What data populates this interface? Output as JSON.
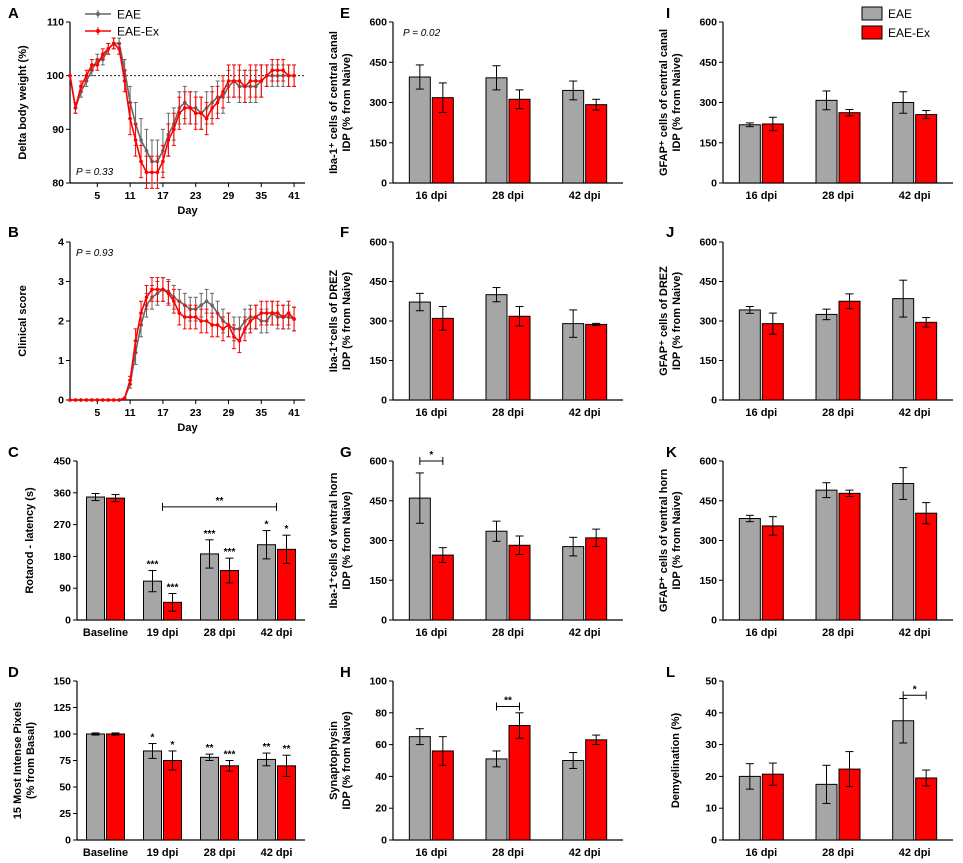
{
  "colors": {
    "eae_line": "#666666",
    "eae_bar": "#a6a6a6",
    "eaeex": "#ff0000",
    "axis": "#000000"
  },
  "legend_line": [
    "EAE",
    "EAE-Ex"
  ],
  "legend_bar": [
    "EAE",
    "EAE-Ex"
  ],
  "chart_data": [
    {
      "id": "A",
      "letter": "A",
      "type": "line",
      "ylabel": "Delta body weight (%)",
      "xlabel": "Day",
      "pval": "P = 0.33",
      "xlim": [
        0,
        43
      ],
      "ylim": [
        80,
        110
      ],
      "xticks": [
        5,
        11,
        17,
        23,
        29,
        35,
        41
      ],
      "yticks": [
        80,
        90,
        100,
        110
      ],
      "refline": 100,
      "series": [
        {
          "name": "EAE",
          "x": [
            0,
            1,
            2,
            3,
            4,
            5,
            6,
            7,
            8,
            9,
            10,
            11,
            12,
            13,
            14,
            15,
            16,
            17,
            18,
            19,
            20,
            21,
            22,
            23,
            24,
            25,
            26,
            27,
            28,
            29,
            30,
            31,
            32,
            33,
            34,
            35,
            36,
            37,
            38,
            39,
            40,
            41
          ],
          "y": [
            100,
            94,
            97,
            99,
            101,
            103,
            103,
            105,
            106,
            106,
            101,
            95,
            91,
            88,
            86,
            84,
            84,
            86,
            89,
            91,
            94,
            95,
            94,
            94,
            93,
            94,
            95,
            96,
            96,
            98,
            99,
            98,
            98,
            98,
            98,
            99,
            100,
            100,
            100,
            100,
            100,
            100
          ],
          "err": [
            0,
            1,
            1,
            1,
            1,
            1,
            1,
            1,
            1,
            1,
            2,
            3,
            4,
            4,
            4,
            4,
            4,
            4,
            4,
            3,
            3,
            3,
            3,
            3,
            3,
            3,
            3,
            3,
            3,
            3,
            3,
            3,
            3,
            3,
            3,
            3,
            2,
            2,
            2,
            2,
            2,
            2
          ]
        },
        {
          "name": "EAE-Ex",
          "x": [
            0,
            1,
            2,
            3,
            4,
            5,
            6,
            7,
            8,
            9,
            10,
            11,
            12,
            13,
            14,
            15,
            16,
            17,
            18,
            19,
            20,
            21,
            22,
            23,
            24,
            25,
            26,
            27,
            28,
            29,
            30,
            31,
            32,
            33,
            34,
            35,
            36,
            37,
            38,
            39,
            40,
            41
          ],
          "y": [
            100,
            94,
            98,
            100,
            102,
            102,
            104,
            105,
            106,
            105,
            99,
            92,
            88,
            84,
            82,
            82,
            82,
            84,
            88,
            90,
            93,
            94,
            94,
            93,
            93,
            92,
            94,
            95,
            97,
            99,
            99,
            99,
            98,
            99,
            99,
            99,
            100,
            101,
            101,
            101,
            100,
            100
          ],
          "err": [
            0,
            1,
            1,
            1,
            1,
            1,
            1,
            1,
            1,
            1,
            2,
            3,
            3,
            3,
            3,
            3,
            3,
            3,
            3,
            3,
            3,
            3,
            3,
            3,
            3,
            3,
            3,
            3,
            3,
            3,
            3,
            3,
            3,
            3,
            3,
            3,
            2,
            2,
            2,
            2,
            2,
            2
          ]
        }
      ]
    },
    {
      "id": "B",
      "letter": "B",
      "type": "line",
      "ylabel": "Clinical score",
      "xlabel": "Day",
      "pval": "P = 0.93",
      "xlim": [
        0,
        43
      ],
      "ylim": [
        0,
        4
      ],
      "xticks": [
        5,
        11,
        17,
        23,
        29,
        35,
        41
      ],
      "yticks": [
        0,
        1,
        2,
        3,
        4
      ],
      "series": [
        {
          "name": "EAE",
          "x": [
            0,
            1,
            2,
            3,
            4,
            5,
            6,
            7,
            8,
            9,
            10,
            11,
            12,
            13,
            14,
            15,
            16,
            17,
            18,
            19,
            20,
            21,
            22,
            23,
            24,
            25,
            26,
            27,
            28,
            29,
            30,
            31,
            32,
            33,
            34,
            35,
            36,
            37,
            38,
            39,
            40,
            41
          ],
          "y": [
            0,
            0,
            0,
            0,
            0,
            0,
            0,
            0,
            0,
            0,
            0.05,
            0.4,
            1.2,
            1.9,
            2.4,
            2.6,
            2.7,
            2.8,
            2.75,
            2.6,
            2.5,
            2.4,
            2.3,
            2.3,
            2.4,
            2.5,
            2.4,
            2.2,
            2.0,
            1.9,
            1.8,
            1.8,
            2.0,
            2.1,
            2.1,
            2.0,
            2.0,
            2.2,
            2.1,
            2.1,
            2.1,
            2.05
          ],
          "err": [
            0,
            0,
            0,
            0,
            0,
            0,
            0,
            0,
            0,
            0,
            0,
            0.1,
            0.3,
            0.3,
            0.3,
            0.3,
            0.3,
            0.3,
            0.3,
            0.3,
            0.3,
            0.3,
            0.3,
            0.3,
            0.3,
            0.3,
            0.3,
            0.3,
            0.3,
            0.3,
            0.3,
            0.3,
            0.3,
            0.3,
            0.3,
            0.3,
            0.3,
            0.3,
            0.3,
            0.3,
            0.3,
            0.3
          ]
        },
        {
          "name": "EAE-Ex",
          "x": [
            0,
            1,
            2,
            3,
            4,
            5,
            6,
            7,
            8,
            9,
            10,
            11,
            12,
            13,
            14,
            15,
            16,
            17,
            18,
            19,
            20,
            21,
            22,
            23,
            24,
            25,
            26,
            27,
            28,
            29,
            30,
            31,
            32,
            33,
            34,
            35,
            36,
            37,
            38,
            39,
            40,
            41
          ],
          "y": [
            0,
            0,
            0,
            0,
            0,
            0,
            0,
            0,
            0,
            0,
            0.05,
            0.5,
            1.5,
            2.2,
            2.6,
            2.8,
            2.8,
            2.8,
            2.7,
            2.5,
            2.2,
            2.1,
            2.1,
            2.1,
            2.0,
            2.0,
            1.9,
            1.9,
            1.8,
            1.9,
            1.6,
            1.5,
            1.8,
            2.0,
            2.1,
            2.2,
            2.2,
            2.2,
            2.2,
            2.1,
            2.2,
            2.05
          ],
          "err": [
            0,
            0,
            0,
            0,
            0,
            0,
            0,
            0,
            0,
            0,
            0,
            0.1,
            0.3,
            0.3,
            0.3,
            0.3,
            0.3,
            0.3,
            0.3,
            0.3,
            0.3,
            0.3,
            0.3,
            0.3,
            0.3,
            0.3,
            0.3,
            0.3,
            0.3,
            0.3,
            0.3,
            0.3,
            0.3,
            0.3,
            0.3,
            0.3,
            0.3,
            0.3,
            0.3,
            0.3,
            0.3,
            0.3
          ]
        }
      ]
    },
    {
      "id": "C",
      "letter": "C",
      "type": "bar",
      "ylabel": "Rotarod - latency (s)",
      "ylim": [
        0,
        450
      ],
      "yticks": [
        0,
        90,
        180,
        270,
        360,
        450
      ],
      "categories": [
        "Baseline",
        "19 dpi",
        "28 dpi",
        "42 dpi"
      ],
      "series": [
        {
          "name": "EAE",
          "values": [
            348,
            110,
            187,
            213
          ],
          "err": [
            10,
            30,
            40,
            40
          ],
          "stars": [
            "",
            "***",
            "***",
            "*"
          ]
        },
        {
          "name": "EAE-Ex",
          "values": [
            345,
            50,
            140,
            200
          ],
          "err": [
            10,
            25,
            35,
            40
          ],
          "stars": [
            "",
            "***",
            "***",
            "*"
          ]
        }
      ],
      "brackets": [
        {
          "from": 1,
          "to": 3,
          "y": 320,
          "label": "**"
        }
      ]
    },
    {
      "id": "D",
      "letter": "D",
      "type": "bar",
      "ylabel": [
        "15 Most Intense Pixels",
        "(% from Basal)"
      ],
      "ylim": [
        0,
        150
      ],
      "yticks": [
        0,
        25,
        50,
        75,
        100,
        125,
        150
      ],
      "categories": [
        "Baseline",
        "19 dpi",
        "28 dpi",
        "42 dpi"
      ],
      "series": [
        {
          "name": "EAE",
          "values": [
            100,
            84,
            78,
            76
          ],
          "err": [
            1,
            7,
            3,
            6
          ],
          "stars": [
            "",
            "*",
            "**",
            "**"
          ]
        },
        {
          "name": "EAE-Ex",
          "values": [
            100,
            75,
            70,
            70
          ],
          "err": [
            1,
            9,
            5,
            10
          ],
          "stars": [
            "",
            "*",
            "***",
            "**"
          ]
        }
      ]
    },
    {
      "id": "E",
      "letter": "E",
      "type": "bar",
      "ylabel": [
        "Iba-1⁺ cells of central canal",
        "IDP (% from Naive)"
      ],
      "pval": "P = 0.02",
      "ylim": [
        0,
        600
      ],
      "yticks": [
        0,
        150,
        300,
        450,
        600
      ],
      "categories": [
        "16 dpi",
        "28 dpi",
        "42 dpi"
      ],
      "series": [
        {
          "name": "EAE",
          "values": [
            395,
            392,
            345
          ],
          "err": [
            45,
            45,
            35
          ]
        },
        {
          "name": "EAE-Ex",
          "values": [
            318,
            312,
            292
          ],
          "err": [
            55,
            35,
            20
          ]
        }
      ]
    },
    {
      "id": "F",
      "letter": "F",
      "type": "bar",
      "ylabel": [
        "Iba-1⁺cells of DREZ",
        "IDP (% from Naive)"
      ],
      "ylim": [
        0,
        600
      ],
      "yticks": [
        0,
        150,
        300,
        450,
        600
      ],
      "categories": [
        "16 dpi",
        "28 dpi",
        "42 dpi"
      ],
      "series": [
        {
          "name": "EAE",
          "values": [
            372,
            400,
            290
          ],
          "err": [
            33,
            27,
            52
          ]
        },
        {
          "name": "EAE-Ex",
          "values": [
            310,
            318,
            287
          ],
          "err": [
            45,
            37,
            4
          ]
        }
      ]
    },
    {
      "id": "G",
      "letter": "G",
      "type": "bar",
      "ylabel": [
        "Iba-1⁺cells of ventral horn",
        "IDP (% from Naive)"
      ],
      "ylim": [
        0,
        600
      ],
      "yticks": [
        0,
        150,
        300,
        450,
        600
      ],
      "categories": [
        "16 dpi",
        "28 dpi",
        "42 dpi"
      ],
      "series": [
        {
          "name": "EAE",
          "values": [
            460,
            335,
            277
          ],
          "err": [
            95,
            38,
            35
          ]
        },
        {
          "name": "EAE-Ex",
          "values": [
            245,
            282,
            310
          ],
          "err": [
            28,
            35,
            33
          ]
        }
      ],
      "brackets": [
        {
          "from": 0,
          "to": 0,
          "y": 600,
          "label": "*"
        }
      ]
    },
    {
      "id": "H",
      "letter": "H",
      "type": "bar",
      "ylabel": [
        "Synaptophysin",
        "IDP (% from Naive)"
      ],
      "ylim": [
        0,
        100
      ],
      "yticks": [
        0,
        20,
        40,
        60,
        80,
        100
      ],
      "categories": [
        "16 dpi",
        "28 dpi",
        "42 dpi"
      ],
      "series": [
        {
          "name": "EAE",
          "values": [
            65,
            51,
            50
          ],
          "err": [
            5,
            5,
            5
          ]
        },
        {
          "name": "EAE-Ex",
          "values": [
            56,
            72,
            63
          ],
          "err": [
            9,
            8,
            3
          ]
        }
      ],
      "brackets": [
        {
          "from": 1,
          "to": 1,
          "y": 84,
          "label": "**"
        }
      ]
    },
    {
      "id": "I",
      "letter": "I",
      "type": "bar",
      "ylabel": [
        "GFAP⁺ cells of central canal",
        "IDP (% from Naive)"
      ],
      "ylim": [
        0,
        600
      ],
      "yticks": [
        0,
        150,
        300,
        450,
        600
      ],
      "categories": [
        "16 dpi",
        "28 dpi",
        "42 dpi"
      ],
      "series": [
        {
          "name": "EAE",
          "values": [
            217,
            308,
            300
          ],
          "err": [
            7,
            35,
            40
          ]
        },
        {
          "name": "EAE-Ex",
          "values": [
            220,
            262,
            255
          ],
          "err": [
            25,
            12,
            15
          ]
        }
      ]
    },
    {
      "id": "J",
      "letter": "J",
      "type": "bar",
      "ylabel": [
        "GFAP⁺ cells of DREZ",
        "IDP (% from Naive)"
      ],
      "ylim": [
        0,
        600
      ],
      "yticks": [
        0,
        150,
        300,
        450,
        600
      ],
      "categories": [
        "16 dpi",
        "28 dpi",
        "42 dpi"
      ],
      "series": [
        {
          "name": "EAE",
          "values": [
            342,
            325,
            385
          ],
          "err": [
            13,
            20,
            70
          ]
        },
        {
          "name": "EAE-Ex",
          "values": [
            290,
            375,
            295
          ],
          "err": [
            40,
            28,
            18
          ]
        }
      ]
    },
    {
      "id": "K",
      "letter": "K",
      "type": "bar",
      "ylabel": [
        "GFAP⁺ cells of ventral horn",
        "IDP (% from Naive)"
      ],
      "ylim": [
        0,
        600
      ],
      "yticks": [
        0,
        150,
        300,
        450,
        600
      ],
      "categories": [
        "16 dpi",
        "28 dpi",
        "42 dpi"
      ],
      "series": [
        {
          "name": "EAE",
          "values": [
            383,
            490,
            515
          ],
          "err": [
            12,
            28,
            60
          ]
        },
        {
          "name": "EAE-Ex",
          "values": [
            355,
            478,
            403
          ],
          "err": [
            35,
            12,
            40
          ]
        }
      ]
    },
    {
      "id": "L",
      "letter": "L",
      "type": "bar",
      "ylabel": "Demyelination (%)",
      "ylim": [
        0,
        50
      ],
      "yticks": [
        0,
        10,
        20,
        30,
        40,
        50
      ],
      "categories": [
        "16 dpi",
        "28 dpi",
        "42 dpi"
      ],
      "series": [
        {
          "name": "EAE",
          "values": [
            20,
            17.5,
            37.5
          ],
          "err": [
            4,
            6,
            7
          ]
        },
        {
          "name": "EAE-Ex",
          "values": [
            20.7,
            22.3,
            19.5
          ],
          "err": [
            3.5,
            5.5,
            2.5
          ]
        }
      ],
      "brackets": [
        {
          "from": 2,
          "to": 2,
          "y": 45.5,
          "label": "*"
        }
      ]
    }
  ]
}
